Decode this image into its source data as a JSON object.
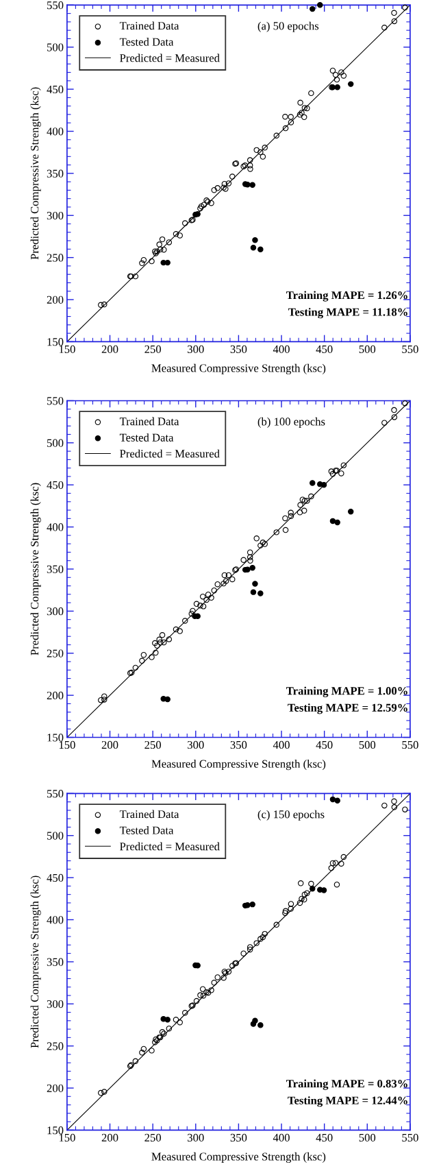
{
  "chart_data": [
    {
      "type": "scatter",
      "xlabel": "Measured Compressive Strength (ksc)",
      "ylabel": "Predicted Compressive Strength (ksc)",
      "annotations": [
        "(a) 50 epochs",
        "Training MAPE = 1.26%",
        "Testing MAPE = 11.18%"
      ],
      "xlim": [
        150,
        550
      ],
      "ylim": [
        150,
        550
      ],
      "xticks": [
        150,
        200,
        250,
        300,
        350,
        400,
        450,
        500,
        550
      ],
      "yticks": [
        150,
        200,
        250,
        300,
        350,
        400,
        450,
        500,
        550
      ],
      "grid": false,
      "legend": "top left",
      "marker": "circle",
      "series": [
        {
          "name": "Trained Data",
          "color": "#000000",
          "x": [
            189.4,
            193.4,
            223.7,
            224.7,
            229.8,
            237.4,
            239.4,
            248.7,
            252.5,
            253.5,
            255,
            257.6,
            261.1,
            258.8,
            262.9,
            268.9,
            277,
            281.6,
            287.6,
            295.2,
            296.5,
            305.3,
            306.6,
            309.6,
            312.6,
            314.1,
            318.2,
            321.5,
            325.5,
            332.6,
            333.6,
            334.8,
            338.4,
            342.7,
            346,
            347.2,
            355.8,
            357.6,
            363.4,
            363.4,
            363.6,
            371,
            375.5,
            378.3,
            380.6,
            394.2,
            404.3,
            410.9,
            404.8,
            411.1,
            421.5,
            422,
            423.5,
            426.5,
            427,
            429.8,
            434.6,
            458.6,
            459.8,
            463.1,
            464.6,
            469.7,
            472.5,
            520,
            531.3,
            531.6,
            544
          ],
          "values": [
            193.7,
            194.3,
            227.8,
            227.6,
            227.6,
            243.3,
            247.1,
            245.6,
            257.3,
            255,
            257.3,
            265.5,
            271.6,
            259.6,
            259.3,
            268.1,
            278,
            276.2,
            290.8,
            294.3,
            294.9,
            308.3,
            310.9,
            312.7,
            317.9,
            316.2,
            314.7,
            330.2,
            332.5,
            333.1,
            337.5,
            331.6,
            338.1,
            346.2,
            361.4,
            362,
            358.2,
            359.4,
            365.7,
            359.4,
            355.2,
            377.7,
            375.1,
            369.8,
            380.6,
            394.9,
            417.3,
            417.1,
            403.6,
            410.6,
            419.7,
            434,
            422,
            416.8,
            427.8,
            427.3,
            445.3,
            452.3,
            472.1,
            467.1,
            461.4,
            470.1,
            466,
            523.2,
            540.7,
            530.8,
            547
          ]
        },
        {
          "name": "Tested Data",
          "color": "#000000",
          "x": [
            262.4,
            267.2,
            299.7,
            302.3,
            357.8,
            360.4,
            366.2,
            369.2,
            367.2,
            375.5,
            436.1,
            444.9,
            459.6,
            465.2,
            480.8
          ],
          "values": [
            243.9,
            243.9,
            301,
            301.6,
            337.2,
            336.6,
            336.3,
            270.7,
            261.7,
            259.6,
            545.3,
            550,
            452.3,
            452.3,
            456.1
          ]
        },
        {
          "name": "Predicted = Measured",
          "type": "line",
          "color": "#000000",
          "marker": "none",
          "line_style": "solid",
          "x": [
            150,
            550
          ],
          "values": [
            150,
            550
          ]
        }
      ]
    },
    {
      "type": "scatter",
      "xlabel": "Measured Compressive Strength (ksc)",
      "ylabel": "Predicted Compressive Strength (ksc)",
      "annotations": [
        "(b) 100 epochs",
        "Training MAPE = 1.00%",
        "Testing MAPE = 12.59%"
      ],
      "xlim": [
        150,
        550
      ],
      "ylim": [
        150,
        550
      ],
      "xticks": [
        150,
        200,
        250,
        300,
        350,
        400,
        450,
        500,
        550
      ],
      "yticks": [
        150,
        200,
        250,
        300,
        350,
        400,
        450,
        500,
        550
      ],
      "grid": false,
      "legend": "top left",
      "marker": "circle",
      "series": [
        {
          "name": "Trained Data",
          "color": "#000000",
          "x": [
            189.4,
            193.4,
            193.4,
            223.7,
            225.3,
            229.8,
            237.4,
            239.4,
            248.7,
            252.5,
            253.3,
            255,
            257.6,
            261.1,
            258.8,
            262.9,
            268.9,
            277,
            281.6,
            287.6,
            295.2,
            296.5,
            301,
            305.3,
            308.3,
            309,
            312.6,
            314.6,
            318.2,
            321.5,
            325.5,
            332.6,
            333.6,
            335.4,
            338.4,
            342.7,
            346,
            347.2,
            355.8,
            363.4,
            363.4,
            363.6,
            371,
            375.5,
            378.3,
            380.6,
            394.2,
            404.3,
            404.8,
            410.9,
            411.1,
            421.5,
            422,
            424.6,
            426.5,
            427,
            429.8,
            434.6,
            458.1,
            459.8,
            463.1,
            464.6,
            469.7,
            472.5,
            520,
            531.3,
            531.6,
            544
          ],
          "values": [
            194.3,
            198.7,
            194.9,
            226.4,
            227,
            232.8,
            241,
            248,
            245.3,
            262,
            250.6,
            259,
            266.3,
            271.6,
            262.9,
            262.9,
            266.6,
            278.3,
            276.2,
            288.5,
            296.9,
            300.4,
            308.6,
            306.6,
            317.3,
            305.7,
            313.3,
            319.7,
            315.9,
            324.6,
            331.9,
            332.8,
            342.7,
            335.7,
            342.7,
            337.8,
            348.8,
            349.7,
            360.8,
            369.8,
            364,
            359.9,
            386.4,
            378,
            381.5,
            379.7,
            393.7,
            410.3,
            396.4,
            417,
            412.9,
            417.3,
            426.1,
            432.5,
            419.4,
            431,
            431,
            436.3,
            466,
            463,
            466.9,
            466.9,
            463.7,
            473.3,
            523.8,
            538.9,
            530.5,
            547
          ]
        },
        {
          "name": "Tested Data",
          "color": "#000000",
          "x": [
            262.4,
            267.2,
            299,
            302.3,
            357.8,
            360.4,
            366.2,
            369.2,
            367.2,
            375.5,
            436.1,
            444.9,
            449.5,
            459.8,
            465.2,
            480.8
          ],
          "values": [
            195.8,
            195.2,
            294,
            294,
            349.1,
            349.4,
            351.5,
            332.5,
            322.6,
            321.1,
            452.3,
            450.9,
            450,
            407.1,
            405.4,
            418.2
          ]
        },
        {
          "name": "Predicted = Measured",
          "type": "line",
          "color": "#000000",
          "marker": "none",
          "line_style": "solid",
          "x": [
            150,
            550
          ],
          "values": [
            150,
            550
          ]
        }
      ]
    },
    {
      "type": "scatter",
      "xlabel": "Measured Compressive Strength (ksc)",
      "ylabel": "Predicted Compressive Strength (ksc)",
      "annotations": [
        "(c) 150 epochs",
        "Training MAPE = 0.83%",
        "Testing MAPE = 12.44%"
      ],
      "xlim": [
        150,
        550
      ],
      "ylim": [
        150,
        550
      ],
      "xticks": [
        150,
        200,
        250,
        300,
        350,
        400,
        450,
        500,
        550
      ],
      "yticks": [
        150,
        200,
        250,
        300,
        350,
        400,
        450,
        500,
        550
      ],
      "grid": false,
      "legend": "top left",
      "marker": "circle",
      "series": [
        {
          "name": "Trained Data",
          "color": "#000000",
          "x": [
            189.4,
            193.4,
            223.7,
            224.7,
            229.8,
            237.4,
            239.4,
            248.7,
            252.5,
            253.5,
            255,
            257.6,
            261.1,
            258.8,
            262.9,
            268.9,
            277,
            281.6,
            287.6,
            295.2,
            296.5,
            301,
            305.3,
            308.3,
            309,
            312.6,
            314.6,
            318.2,
            321.5,
            325.5,
            332.6,
            333.6,
            334.8,
            338.4,
            342.7,
            346,
            347.2,
            355.8,
            363.4,
            363.4,
            371,
            375.5,
            378.3,
            380.6,
            394.2,
            404.3,
            404.8,
            410.9,
            411.1,
            421.5,
            422.5,
            423.5,
            426.5,
            427,
            429.8,
            434.6,
            458.1,
            459.8,
            463.1,
            464.6,
            469.7,
            472.5,
            520,
            531.3,
            531.6,
            544
          ],
          "values": [
            194.3,
            195.5,
            226.1,
            227.3,
            231.9,
            242.1,
            246.5,
            244.5,
            254.4,
            257.9,
            256.7,
            260.2,
            266.6,
            260.2,
            264.6,
            270.7,
            281.2,
            278,
            289.4,
            297.5,
            298.1,
            303.4,
            310.3,
            317.6,
            309.8,
            313.8,
            313.3,
            316.2,
            325.2,
            331.6,
            331,
            338.3,
            336.6,
            338.3,
            345.3,
            348,
            348.5,
            359.9,
            367.5,
            364.6,
            372.2,
            377.1,
            379.2,
            383.2,
            394,
            408,
            410.3,
            413,
            418.8,
            420,
            443.3,
            424.9,
            424,
            429.9,
            431.6,
            442.7,
            461.4,
            467.2,
            467.5,
            441.8,
            466.6,
            474.5,
            535.7,
            540.7,
            533.7,
            531
          ]
        },
        {
          "name": "Tested Data",
          "color": "#000000",
          "x": [
            262.4,
            267.2,
            299.7,
            302.3,
            357.8,
            360.4,
            366.2,
            369.2,
            367.2,
            375.5,
            436.1,
            444.9,
            449.5,
            459.8,
            465.2
          ],
          "values": [
            282.1,
            281.2,
            345.9,
            345.6,
            416.8,
            417.3,
            418.2,
            280,
            276.2,
            274.8,
            436.9,
            435.7,
            435.1,
            543,
            541.5
          ]
        },
        {
          "name": "Predicted = Measured",
          "type": "line",
          "color": "#000000",
          "marker": "none",
          "line_style": "solid",
          "x": [
            150,
            550
          ],
          "values": [
            150,
            550
          ]
        }
      ]
    }
  ]
}
